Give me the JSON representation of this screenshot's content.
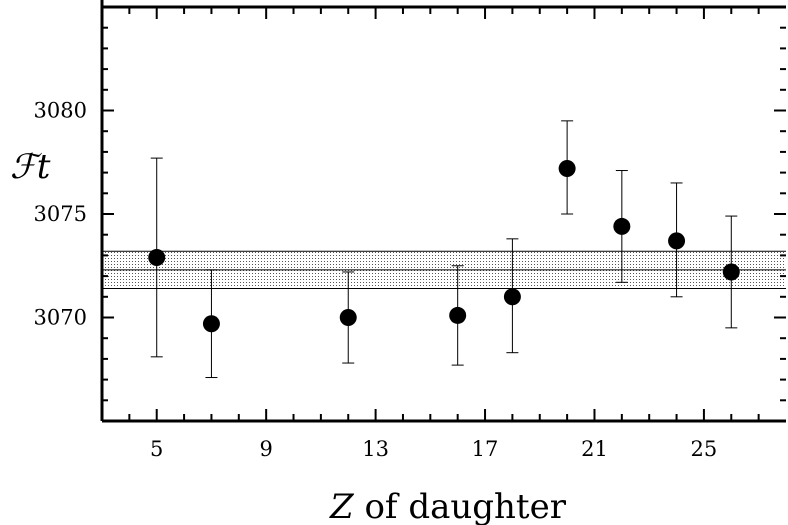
{
  "chart_data": {
    "type": "scatter",
    "title": "",
    "xlabel": "Z of daughter",
    "xlabel_parts": [
      "Z",
      " of daughter"
    ],
    "ylabel": "ℱt",
    "xlim": [
      3,
      28
    ],
    "ylim": [
      3065,
      3085
    ],
    "x_ticks": [
      5,
      9,
      13,
      17,
      21,
      25
    ],
    "y_ticks": [
      3070,
      3075,
      3080
    ],
    "grid": false,
    "legend": "none",
    "points": [
      {
        "x": 5,
        "y": 3072.9,
        "err_low": 3068.1,
        "err_high": 3077.7
      },
      {
        "x": 7,
        "y": 3069.7,
        "err_low": 3067.1,
        "err_high": 3072.3
      },
      {
        "x": 12,
        "y": 3070.0,
        "err_low": 3067.8,
        "err_high": 3072.2
      },
      {
        "x": 16,
        "y": 3070.1,
        "err_low": 3067.7,
        "err_high": 3072.5
      },
      {
        "x": 18,
        "y": 3071.0,
        "err_low": 3068.3,
        "err_high": 3073.8
      },
      {
        "x": 20,
        "y": 3077.2,
        "err_low": 3075.0,
        "err_high": 3079.5
      },
      {
        "x": 22,
        "y": 3074.4,
        "err_low": 3071.7,
        "err_high": 3077.1
      },
      {
        "x": 24,
        "y": 3073.7,
        "err_low": 3071.0,
        "err_high": 3076.5
      },
      {
        "x": 26,
        "y": 3072.2,
        "err_low": 3069.5,
        "err_high": 3074.9
      }
    ],
    "average": {
      "value": 3072.3,
      "band_low": 3071.4,
      "band_high": 3073.2
    },
    "colors": {
      "marker": "#000000",
      "band": "#d6d6d6",
      "axis": "#000000"
    }
  }
}
